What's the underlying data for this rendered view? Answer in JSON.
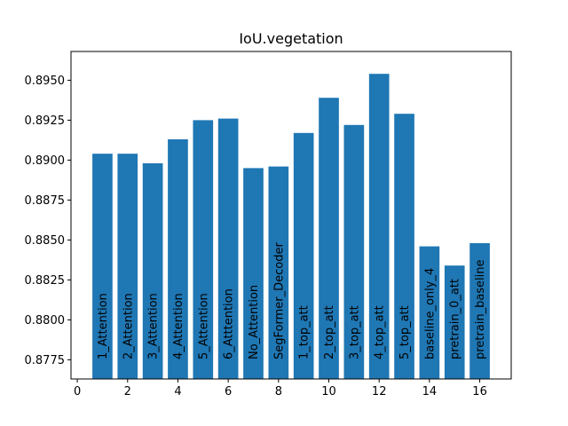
{
  "chart_data": {
    "type": "bar",
    "title": "IoU.vegetation",
    "xlabel": "",
    "ylabel": "",
    "x": [
      1,
      2,
      3,
      4,
      5,
      6,
      7,
      8,
      9,
      10,
      11,
      12,
      13,
      14,
      15,
      16
    ],
    "categories": [
      "1_Attention",
      "2_Attention",
      "3_Attention",
      "4_Attention",
      "5_Attention",
      "6_Atttention",
      "No_Attention",
      "SegFormer_Decoder",
      "1_top_att",
      "2_top_att",
      "3_top_att",
      "4_top_att",
      "5_top_att",
      "baseline_only_4",
      "pretrain_0_att",
      "pretrain_baseline"
    ],
    "values": [
      0.8904,
      0.8904,
      0.8898,
      0.8913,
      0.8925,
      0.8926,
      0.8895,
      0.8896,
      0.8917,
      0.8939,
      0.8922,
      0.8954,
      0.8929,
      0.8846,
      0.8834,
      0.8848
    ],
    "xlim": [
      -0.25,
      17.25
    ],
    "ylim": [
      0.8763,
      0.8968
    ],
    "xticks": [
      0,
      2,
      4,
      6,
      8,
      10,
      12,
      14,
      16
    ],
    "xtick_labels": [
      "0",
      "2",
      "4",
      "6",
      "8",
      "10",
      "12",
      "14",
      "16"
    ],
    "yticks": [
      0.8775,
      0.88,
      0.8825,
      0.885,
      0.8875,
      0.89,
      0.8925,
      0.895
    ],
    "ytick_labels": [
      "0.8775",
      "0.8800",
      "0.8825",
      "0.8850",
      "0.8875",
      "0.8900",
      "0.8925",
      "0.8950"
    ],
    "bar_color": "#1f77b4",
    "grid": false,
    "legend": "none"
  }
}
